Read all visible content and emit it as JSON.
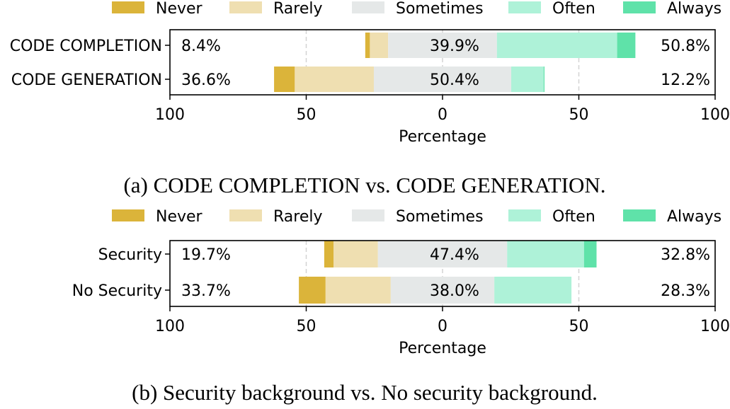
{
  "colors": {
    "Never": "#dbb43a",
    "Rarely": "#efdfb1",
    "Sometimes": "#e5e8e8",
    "Often": "#aef2d8",
    "Always": "#5fe2a9",
    "grid": "#d3d3d3",
    "frame": "#000000"
  },
  "chart_data": [
    {
      "type": "bar",
      "orientation": "horizontal-diverging",
      "categories": [
        "CODE COMPLETION",
        "CODE GENERATION"
      ],
      "series": [
        {
          "name": "Never",
          "values": [
            1.7,
            7.6
          ]
        },
        {
          "name": "Rarely",
          "values": [
            6.7,
            29.0
          ]
        },
        {
          "name": "Sometimes",
          "values": [
            39.9,
            50.4
          ]
        },
        {
          "name": "Often",
          "values": [
            44.1,
            11.9
          ]
        },
        {
          "name": "Always",
          "values": [
            6.7,
            0.3
          ]
        }
      ],
      "left_labels": [
        "8.4%",
        "36.6%"
      ],
      "center_labels": [
        "39.9%",
        "50.4%"
      ],
      "right_labels": [
        "50.8%",
        "12.2%"
      ],
      "xlim": [
        -100,
        100
      ],
      "xticks": [
        -100,
        -50,
        0,
        50,
        100
      ],
      "xtick_labels": [
        "100",
        "50",
        "0",
        "50",
        "100"
      ],
      "xlabel": "Percentage",
      "legend": [
        "Never",
        "Rarely",
        "Sometimes",
        "Often",
        "Always"
      ],
      "legend_position": "top",
      "grid": "vertical dashed",
      "caption": "(a) CODE COMPLETION vs. CODE GENERATION."
    },
    {
      "type": "bar",
      "orientation": "horizontal-diverging",
      "categories": [
        "Security",
        "No Security"
      ],
      "series": [
        {
          "name": "Never",
          "values": [
            3.4,
            9.8
          ]
        },
        {
          "name": "Rarely",
          "values": [
            16.3,
            23.9
          ]
        },
        {
          "name": "Sometimes",
          "values": [
            47.4,
            38.0
          ]
        },
        {
          "name": "Often",
          "values": [
            28.2,
            28.3
          ]
        },
        {
          "name": "Always",
          "values": [
            4.6,
            0.0
          ]
        }
      ],
      "left_labels": [
        "19.7%",
        "33.7%"
      ],
      "center_labels": [
        "47.4%",
        "38.0%"
      ],
      "right_labels": [
        "32.8%",
        "28.3%"
      ],
      "xlim": [
        -100,
        100
      ],
      "xticks": [
        -100,
        -50,
        0,
        50,
        100
      ],
      "xtick_labels": [
        "100",
        "50",
        "0",
        "50",
        "100"
      ],
      "xlabel": "Percentage",
      "legend": [
        "Never",
        "Rarely",
        "Sometimes",
        "Often",
        "Always"
      ],
      "legend_position": "top",
      "grid": "vertical dashed",
      "caption": "(b) Security background vs. No security background."
    }
  ]
}
